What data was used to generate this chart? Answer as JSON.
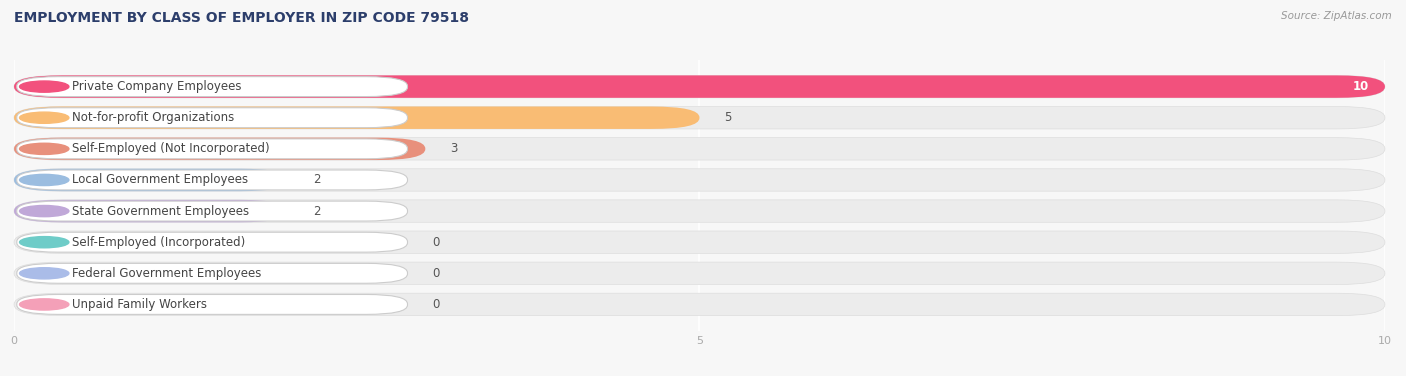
{
  "title": "EMPLOYMENT BY CLASS OF EMPLOYER IN ZIP CODE 79518",
  "source": "Source: ZipAtlas.com",
  "categories": [
    "Private Company Employees",
    "Not-for-profit Organizations",
    "Self-Employed (Not Incorporated)",
    "Local Government Employees",
    "State Government Employees",
    "Self-Employed (Incorporated)",
    "Federal Government Employees",
    "Unpaid Family Workers"
  ],
  "values": [
    10,
    5,
    3,
    2,
    2,
    0,
    0,
    0
  ],
  "bar_colors": [
    "#F2517D",
    "#F9BC74",
    "#E8907C",
    "#9BBDE0",
    "#C0A8D8",
    "#6ECCC8",
    "#AABCE8",
    "#F4A0B8"
  ],
  "xlim": [
    0,
    10
  ],
  "xticks": [
    0,
    5,
    10
  ],
  "bg_color": "#f7f7f7",
  "bar_bg_color": "#ececec",
  "label_bg_color": "#ffffff",
  "title_fontsize": 10,
  "label_fontsize": 8.5,
  "value_fontsize": 8.5,
  "bar_height": 0.72,
  "bar_gap": 0.28
}
